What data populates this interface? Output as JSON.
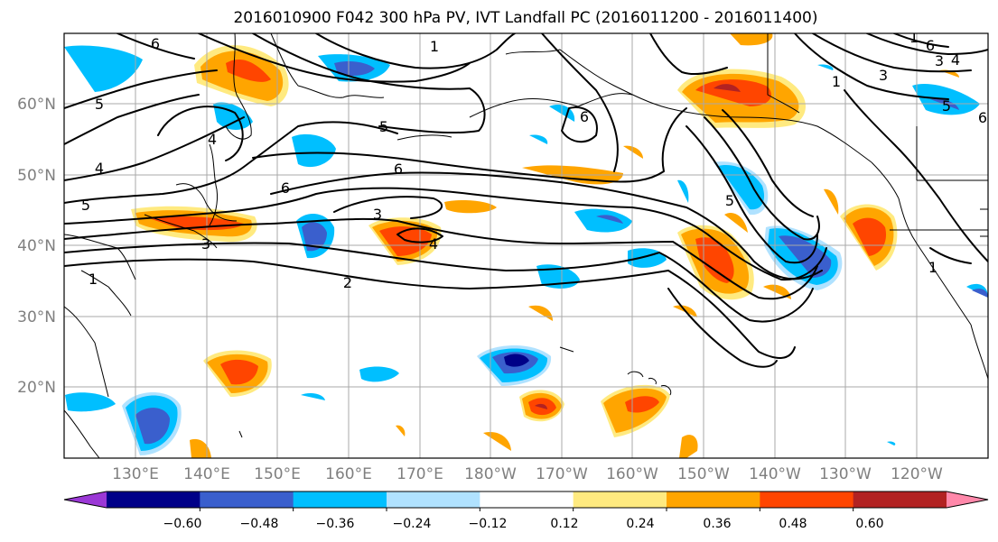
{
  "title": "2016010900 F042 300 hPa PV, IVT Landfall PC (2016011200 - 2016011400)",
  "latitude_labels": [
    "20°N",
    "30°N",
    "40°N",
    "50°N",
    "60°N"
  ],
  "longitude_labels": [
    "130°E",
    "140°E",
    "150°E",
    "160°E",
    "170°E",
    "180°W",
    "170°W",
    "160°W",
    "150°W",
    "140°W",
    "130°W",
    "120°W"
  ],
  "colorbar": {
    "levels": [
      "−0.60",
      "−0.48",
      "−0.36",
      "−0.24",
      "−0.12",
      "0.12",
      "0.24",
      "0.36",
      "0.48",
      "0.60"
    ],
    "colors": [
      "#9b38d6",
      "#000088",
      "#3a5fcd",
      "#00bfff",
      "#b0e2ff",
      "#ffffff",
      "#ffea80",
      "#ffa500",
      "#ff4500",
      "#b22222",
      "#ff88aa"
    ]
  },
  "contour_labels": [
    "1",
    "2",
    "3",
    "4",
    "4",
    "5",
    "5",
    "5",
    "6",
    "6",
    "6",
    "6",
    "1",
    "3",
    "1",
    "4",
    "3",
    "1",
    "5",
    "6",
    "1",
    "3",
    "4",
    "5",
    "6"
  ],
  "colors": {
    "neg_strong": "#000088",
    "neg_med": "#3a5fcd",
    "neg": "#00bfff",
    "neg_light": "#b0e2ff",
    "pos_light": "#ffea80",
    "pos": "#ffa500",
    "pos_med": "#ff4500",
    "pos_strong": "#b22222"
  }
}
